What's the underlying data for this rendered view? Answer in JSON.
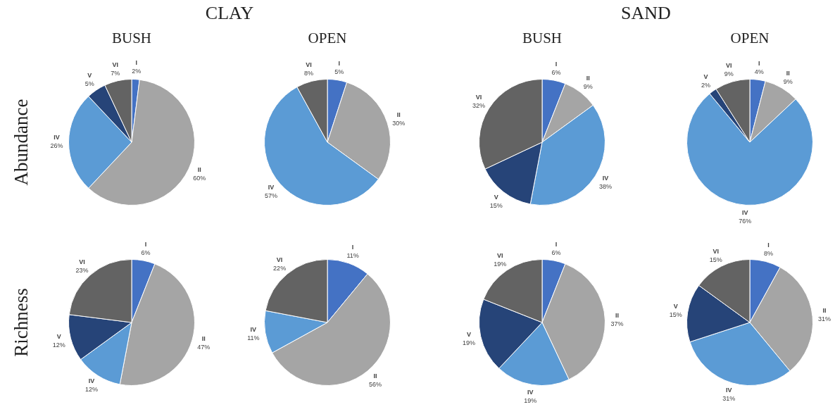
{
  "chart_data": [
    {
      "type": "pie",
      "title": "BUSH",
      "ylabel": "Abundance",
      "annotations": [
        "CLAY"
      ],
      "categories": [
        "I",
        "II",
        "IV",
        "V",
        "VI"
      ],
      "values": [
        2,
        60,
        26,
        5,
        7
      ],
      "value_labels": [
        "2%",
        "60%",
        "26%",
        "5%",
        "7%"
      ],
      "colors": [
        "#4472c4",
        "#a5a5a5",
        "#5b9bd5",
        "#264478",
        "#636363"
      ]
    },
    {
      "type": "pie",
      "title": "OPEN",
      "categories": [
        "I",
        "II",
        "IV",
        "VI"
      ],
      "values": [
        5,
        30,
        57,
        8
      ],
      "value_labels": [
        "5%",
        "30%",
        "57%",
        "8%"
      ],
      "colors": [
        "#4472c4",
        "#a5a5a5",
        "#5b9bd5",
        "#636363"
      ]
    },
    {
      "type": "pie",
      "title": "BUSH",
      "annotations": [
        "SAND"
      ],
      "categories": [
        "I",
        "II",
        "IV",
        "V",
        "VI"
      ],
      "values": [
        6,
        9,
        38,
        15,
        32
      ],
      "value_labels": [
        "6%",
        "9%",
        "38%",
        "15%",
        "32%"
      ],
      "colors": [
        "#4472c4",
        "#a5a5a5",
        "#5b9bd5",
        "#264478",
        "#636363"
      ]
    },
    {
      "type": "pie",
      "title": "OPEN",
      "categories": [
        "I",
        "II",
        "IV",
        "V",
        "VI"
      ],
      "values": [
        4,
        9,
        76,
        2,
        9
      ],
      "value_labels": [
        "4%",
        "9%",
        "76%",
        "2%",
        "9%"
      ],
      "colors": [
        "#4472c4",
        "#a5a5a5",
        "#5b9bd5",
        "#264478",
        "#636363"
      ]
    },
    {
      "type": "pie",
      "ylabel": "Richness",
      "categories": [
        "I",
        "II",
        "IV",
        "V",
        "VI"
      ],
      "values": [
        6,
        47,
        12,
        12,
        23
      ],
      "value_labels": [
        "6%",
        "47%",
        "12%",
        "12%",
        "23%"
      ],
      "colors": [
        "#4472c4",
        "#a5a5a5",
        "#5b9bd5",
        "#264478",
        "#636363"
      ]
    },
    {
      "type": "pie",
      "categories": [
        "I",
        "II",
        "IV",
        "VI"
      ],
      "values": [
        11,
        56,
        11,
        22
      ],
      "value_labels": [
        "11%",
        "56%",
        "11%",
        "22%"
      ],
      "colors": [
        "#4472c4",
        "#a5a5a5",
        "#5b9bd5",
        "#636363"
      ]
    },
    {
      "type": "pie",
      "categories": [
        "I",
        "II",
        "IV",
        "V",
        "VI"
      ],
      "values": [
        6,
        37,
        19,
        19,
        19
      ],
      "value_labels": [
        "6%",
        "37%",
        "19%",
        "19%",
        "19%"
      ],
      "colors": [
        "#4472c4",
        "#a5a5a5",
        "#5b9bd5",
        "#264478",
        "#636363"
      ]
    },
    {
      "type": "pie",
      "categories": [
        "I",
        "II",
        "IV",
        "V",
        "VI"
      ],
      "values": [
        8,
        31,
        31,
        15,
        15
      ],
      "value_labels": [
        "8%",
        "31%",
        "31%",
        "15%",
        "15%"
      ],
      "colors": [
        "#4472c4",
        "#a5a5a5",
        "#5b9bd5",
        "#264478",
        "#636363"
      ]
    }
  ]
}
